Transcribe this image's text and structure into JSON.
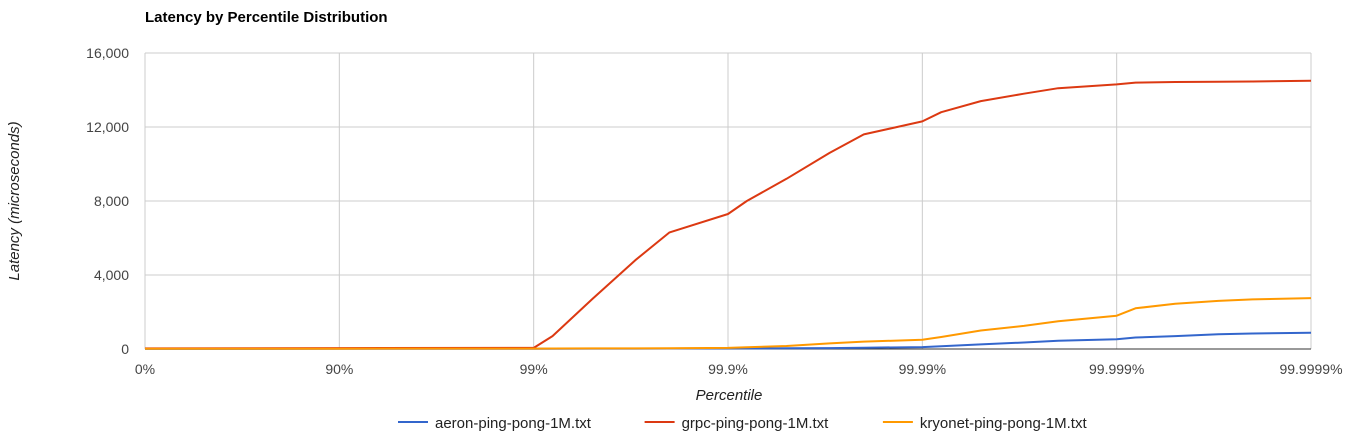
{
  "chart_data": {
    "type": "line",
    "title": "Latency by Percentile Distribution",
    "xlabel": "Percentile",
    "ylabel": "Latency (microseconds)",
    "x_scale": "percentile-log (nines)",
    "x_ticks": [
      "0%",
      "90%",
      "99%",
      "99.9%",
      "99.99%",
      "99.999%",
      "99.9999%"
    ],
    "y_ticks": [
      "0",
      "4,000",
      "8,000",
      "12,000",
      "16,000"
    ],
    "ylim": [
      0,
      16000
    ],
    "grid": true,
    "legend_position": "bottom",
    "x": [
      "0%",
      "90%",
      "99%",
      "99.2%",
      "99.5%",
      "99.7%",
      "99.8%",
      "99.9%",
      "99.92%",
      "99.95%",
      "99.97%",
      "99.98%",
      "99.99%",
      "99.992%",
      "99.995%",
      "99.997%",
      "99.998%",
      "99.999%",
      "99.9992%",
      "99.9995%",
      "99.9997%",
      "99.9998%",
      "99.9999%"
    ],
    "series": [
      {
        "name": "aeron-ping-pong-1M.txt",
        "color": "#3366cc",
        "values": [
          5,
          10,
          15,
          18,
          20,
          22,
          25,
          30,
          35,
          40,
          50,
          70,
          100,
          150,
          250,
          350,
          450,
          530,
          620,
          700,
          800,
          840,
          880
        ]
      },
      {
        "name": "grpc-ping-pong-1M.txt",
        "color": "#dc3912",
        "values": [
          30,
          50,
          60,
          700,
          2700,
          4800,
          6300,
          7300,
          8000,
          9200,
          10600,
          11600,
          12300,
          12800,
          13400,
          13800,
          14100,
          14300,
          14400,
          14430,
          14450,
          14460,
          14500
        ]
      },
      {
        "name": "kryonet-ping-pong-1M.txt",
        "color": "#ff9900",
        "values": [
          10,
          15,
          20,
          25,
          30,
          35,
          40,
          60,
          90,
          160,
          300,
          400,
          500,
          650,
          1000,
          1250,
          1500,
          1800,
          2200,
          2450,
          2600,
          2680,
          2750
        ]
      }
    ]
  }
}
